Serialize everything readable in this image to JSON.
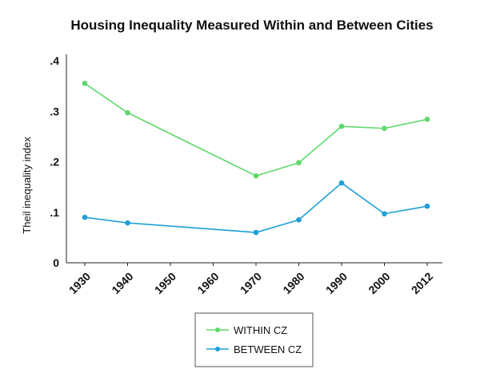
{
  "chart_data": {
    "type": "line",
    "title": "Housing Inequality Measured Within and Between Cities",
    "xlabel": "",
    "ylabel": "Theil inequality index",
    "categories": [
      "1930",
      "1940",
      "1950",
      "1960",
      "1970",
      "1980",
      "1990",
      "2000",
      "2012"
    ],
    "ytick_labels": [
      "0",
      ".1",
      ".2",
      ".3",
      ".4"
    ],
    "ytick_values": [
      0,
      0.1,
      0.2,
      0.3,
      0.4
    ],
    "ylim": [
      0,
      0.4
    ],
    "grid": false,
    "legend_position": "bottom-center",
    "series": [
      {
        "name": "WITHIN CZ",
        "color": "#5ed86a",
        "points": [
          {
            "x": "1930",
            "y": 0.355
          },
          {
            "x": "1940",
            "y": 0.297
          },
          {
            "x": "1970",
            "y": 0.172
          },
          {
            "x": "1980",
            "y": 0.198
          },
          {
            "x": "1990",
            "y": 0.27
          },
          {
            "x": "2000",
            "y": 0.266
          },
          {
            "x": "2012",
            "y": 0.284
          }
        ]
      },
      {
        "name": "BETWEEN CZ",
        "color": "#1e9fd6",
        "points": [
          {
            "x": "1930",
            "y": 0.09
          },
          {
            "x": "1940",
            "y": 0.079
          },
          {
            "x": "1970",
            "y": 0.06
          },
          {
            "x": "1980",
            "y": 0.085
          },
          {
            "x": "1990",
            "y": 0.158
          },
          {
            "x": "2000",
            "y": 0.097
          },
          {
            "x": "2012",
            "y": 0.112
          }
        ]
      }
    ]
  }
}
